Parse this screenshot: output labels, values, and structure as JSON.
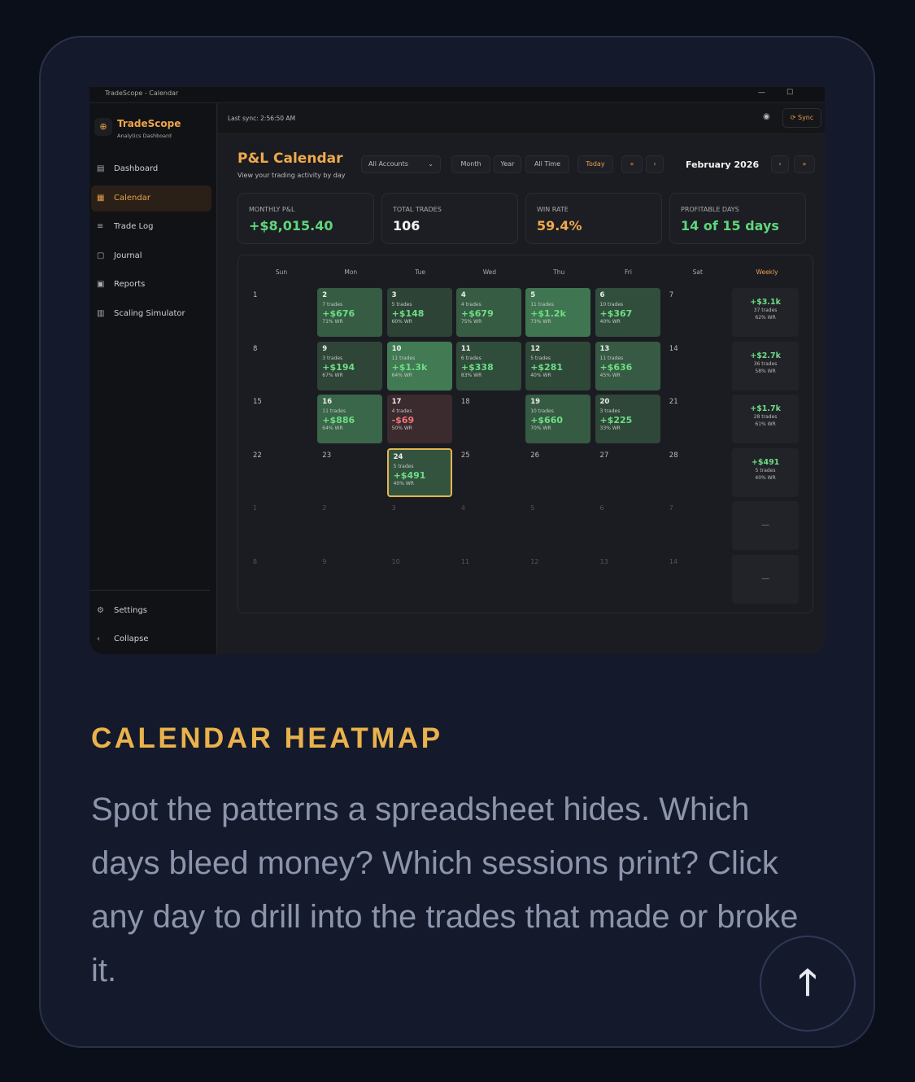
{
  "window": {
    "title": "TradeScope - Calendar"
  },
  "sidebar": {
    "brand": "TradeScope",
    "subtitle": "Analytics Dashboard",
    "items": [
      {
        "label": "Dashboard",
        "icon": "chart-icon"
      },
      {
        "label": "Calendar",
        "icon": "calendar-icon",
        "active": true
      },
      {
        "label": "Trade Log",
        "icon": "list-icon"
      },
      {
        "label": "Journal",
        "icon": "book-icon"
      },
      {
        "label": "Reports",
        "icon": "report-icon"
      },
      {
        "label": "Scaling Simulator",
        "icon": "simulator-icon"
      }
    ],
    "settings": "Settings",
    "collapse": "Collapse"
  },
  "topbar": {
    "last_sync": "Last sync: 2:56:50 AM",
    "sync": "Sync"
  },
  "page": {
    "title": "P&L Calendar",
    "subtitle": "View your trading activity by day",
    "account": "All Accounts",
    "ranges": [
      "Month",
      "Year",
      "All Time"
    ],
    "today": "Today",
    "month": "February 2026"
  },
  "stats": [
    {
      "label": "MONTHLY P&L",
      "value": "+$8,015.40",
      "color": "#5fd67c"
    },
    {
      "label": "TOTAL TRADES",
      "value": "106",
      "color": "#f2f2f2"
    },
    {
      "label": "WIN RATE",
      "value": "59.4%",
      "color": "#eeaa4c"
    },
    {
      "label": "PROFITABLE DAYS",
      "value": "14 of 15 days",
      "color": "#5fd67c"
    }
  ],
  "calendar": {
    "headers": [
      "Sun",
      "Mon",
      "Tue",
      "Wed",
      "Thu",
      "Fri",
      "Sat",
      "Weekly"
    ],
    "weeks": [
      {
        "days": [
          {
            "d": "1"
          },
          {
            "d": "2",
            "trades": "7 trades",
            "pnl": "+$676",
            "wr": "71% WR",
            "v": 676
          },
          {
            "d": "3",
            "trades": "5 trades",
            "pnl": "+$148",
            "wr": "60% WR",
            "v": 148
          },
          {
            "d": "4",
            "trades": "4 trades",
            "pnl": "+$679",
            "wr": "75% WR",
            "v": 679
          },
          {
            "d": "5",
            "trades": "11 trades",
            "pnl": "+$1.2k",
            "wr": "73% WR",
            "v": 1200
          },
          {
            "d": "6",
            "trades": "10 trades",
            "pnl": "+$367",
            "wr": "40% WR",
            "v": 367
          },
          {
            "d": "7"
          }
        ],
        "weekly": {
          "pnl": "+$3.1k",
          "trades": "37 trades",
          "wr": "62% WR"
        }
      },
      {
        "days": [
          {
            "d": "8"
          },
          {
            "d": "9",
            "trades": "3 trades",
            "pnl": "+$194",
            "wr": "67% WR",
            "v": 194
          },
          {
            "d": "10",
            "trades": "11 trades",
            "pnl": "+$1.3k",
            "wr": "64% WR",
            "v": 1300
          },
          {
            "d": "11",
            "trades": "6 trades",
            "pnl": "+$338",
            "wr": "83% WR",
            "v": 338
          },
          {
            "d": "12",
            "trades": "5 trades",
            "pnl": "+$281",
            "wr": "40% WR",
            "v": 281
          },
          {
            "d": "13",
            "trades": "11 trades",
            "pnl": "+$636",
            "wr": "45% WR",
            "v": 636
          },
          {
            "d": "14"
          }
        ],
        "weekly": {
          "pnl": "+$2.7k",
          "trades": "36 trades",
          "wr": "58% WR"
        }
      },
      {
        "days": [
          {
            "d": "15"
          },
          {
            "d": "16",
            "trades": "11 trades",
            "pnl": "+$886",
            "wr": "64% WR",
            "v": 886
          },
          {
            "d": "17",
            "trades": "4 trades",
            "pnl": "-$69",
            "wr": "50% WR",
            "v": -69
          },
          {
            "d": "18"
          },
          {
            "d": "19",
            "trades": "10 trades",
            "pnl": "+$660",
            "wr": "70% WR",
            "v": 660
          },
          {
            "d": "20",
            "trades": "3 trades",
            "pnl": "+$225",
            "wr": "33% WR",
            "v": 225
          },
          {
            "d": "21"
          }
        ],
        "weekly": {
          "pnl": "+$1.7k",
          "trades": "28 trades",
          "wr": "61% WR"
        }
      },
      {
        "days": [
          {
            "d": "22"
          },
          {
            "d": "23"
          },
          {
            "d": "24",
            "trades": "5 trades",
            "pnl": "+$491",
            "wr": "40% WR",
            "v": 491,
            "today": true
          },
          {
            "d": "25"
          },
          {
            "d": "26"
          },
          {
            "d": "27"
          },
          {
            "d": "28"
          }
        ],
        "weekly": {
          "pnl": "+$491",
          "trades": "5 trades",
          "wr": "40% WR"
        }
      },
      {
        "other": true,
        "days": [
          {
            "d": "1"
          },
          {
            "d": "2"
          },
          {
            "d": "3"
          },
          {
            "d": "4"
          },
          {
            "d": "5"
          },
          {
            "d": "6"
          },
          {
            "d": "7"
          }
        ],
        "weekly": {
          "empty": "—"
        }
      },
      {
        "other": true,
        "days": [
          {
            "d": "8"
          },
          {
            "d": "9"
          },
          {
            "d": "10"
          },
          {
            "d": "11"
          },
          {
            "d": "12"
          },
          {
            "d": "13"
          },
          {
            "d": "14"
          }
        ],
        "weekly": {
          "empty": "—"
        }
      }
    ]
  },
  "feature": {
    "heading": "CALENDAR HEATMAP",
    "body": "Spot the patterns a spreadsheet hides. Which days bleed money? Which sessions print? Click any day to drill into the trades that made or broke it."
  },
  "scroll_top": {
    "icon": "arrow-up-icon",
    "glyph": "🡑"
  }
}
